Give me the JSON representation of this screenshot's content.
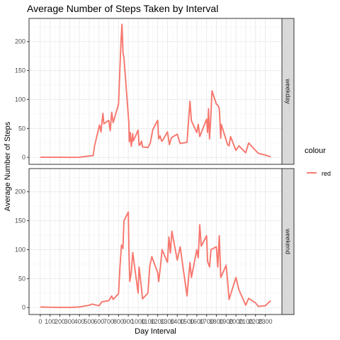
{
  "chart_data": {
    "type": "line",
    "title": "Average Number of Steps Taken by Interval",
    "xlabel": "Day Interval",
    "ylabel": "Average Number of Steps",
    "x_ticks": [
      0,
      100,
      200,
      300,
      400,
      500,
      600,
      700,
      800,
      900,
      1000,
      1100,
      1200,
      1300,
      1400,
      1500,
      1600,
      1700,
      1800,
      1900,
      2000,
      2100,
      2200,
      2300
    ],
    "x_tick_labels": [
      "0",
      "100",
      "200",
      "300",
      "400",
      "500",
      "600",
      "700",
      "800",
      "900",
      "1000",
      "1100",
      "1200",
      "1300",
      "1400",
      "1500",
      "1600",
      "1700",
      "1800",
      "1900",
      "2000",
      "2100",
      "2200",
      "2300"
    ],
    "xlim": [
      -115,
      2470
    ],
    "y_ticks": [
      0,
      50,
      100,
      150,
      200
    ],
    "ylim": [
      -12,
      240
    ],
    "grid": true,
    "line_color": "#F8766D",
    "legend": {
      "title": "colour",
      "labels": [
        "red"
      ],
      "position": "right"
    },
    "panels": [
      {
        "label": "weekday",
        "x": [
          0,
          100,
          200,
          300,
          400,
          500,
          540,
          555,
          605,
          620,
          640,
          650,
          700,
          715,
          730,
          745,
          800,
          815,
          825,
          835,
          845,
          850,
          855,
          905,
          910,
          920,
          930,
          945,
          950,
          1000,
          1010,
          1020,
          1035,
          1045,
          1100,
          1125,
          1150,
          1200,
          1210,
          1225,
          1240,
          1250,
          1300,
          1320,
          1340,
          1400,
          1430,
          1500,
          1530,
          1545,
          1600,
          1615,
          1630,
          1700,
          1710,
          1720,
          1730,
          1745,
          1755,
          1800,
          1815,
          1830,
          1845,
          1850,
          1900,
          1915,
          1930,
          1945,
          2000,
          2030,
          2100,
          2130,
          2200,
          2230,
          2300,
          2355
        ],
        "values": [
          0.3,
          0.2,
          0.1,
          0,
          0.2,
          2.5,
          3,
          20,
          56,
          44,
          76,
          58,
          64,
          46,
          78,
          60,
          92,
          158,
          200,
          230,
          182,
          176,
          173,
          60,
          27,
          43,
          19,
          41,
          28,
          47,
          21,
          22,
          28,
          18,
          17,
          25,
          48,
          64,
          32,
          37,
          28,
          29,
          44,
          22,
          34,
          40,
          24,
          26,
          97,
          63,
          43,
          57,
          36,
          66,
          43,
          84,
          32,
          75,
          115,
          92,
          90,
          84,
          33,
          57,
          30,
          22,
          20,
          36,
          12,
          20,
          8,
          25,
          12,
          7,
          4,
          1
        ]
      },
      {
        "label": "weekend",
        "x": [
          0,
          100,
          200,
          300,
          400,
          500,
          530,
          600,
          630,
          700,
          730,
          745,
          800,
          815,
          830,
          845,
          855,
          900,
          905,
          915,
          930,
          945,
          1000,
          1010,
          1030,
          1045,
          1100,
          1120,
          1140,
          1200,
          1210,
          1230,
          1245,
          1300,
          1315,
          1330,
          1345,
          1400,
          1430,
          1500,
          1530,
          1545,
          1600,
          1615,
          1630,
          1645,
          1700,
          1710,
          1730,
          1745,
          1800,
          1815,
          1830,
          1845,
          1900,
          1915,
          1930,
          2000,
          2030,
          2100,
          2130,
          2200,
          2230,
          2300,
          2355
        ],
        "values": [
          1,
          0.5,
          0.3,
          0.2,
          1,
          4,
          6,
          3,
          10,
          12,
          20,
          14,
          24,
          72,
          108,
          102,
          150,
          165,
          105,
          45,
          60,
          95,
          25,
          70,
          40,
          15,
          25,
          72,
          88,
          60,
          45,
          73,
          100,
          78,
          122,
          94,
          132,
          82,
          105,
          20,
          78,
          52,
          100,
          86,
          143,
          106,
          124,
          80,
          70,
          100,
          105,
          70,
          124,
          52,
          73,
          45,
          14,
          52,
          31,
          4,
          16,
          8,
          2,
          3,
          12
        ]
      }
    ]
  }
}
